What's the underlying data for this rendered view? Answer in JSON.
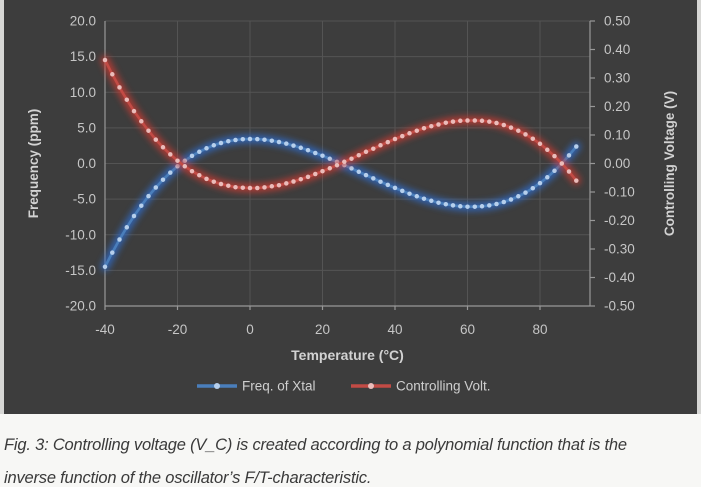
{
  "chart": {
    "x_axis": {
      "title": "Temperature (°C)",
      "tick_labels": [
        "-40",
        "-20",
        "0",
        "20",
        "40",
        "60",
        "80"
      ],
      "tick_values": [
        -40,
        -20,
        0,
        20,
        40,
        60,
        80
      ]
    },
    "left_axis": {
      "title": "Frequency (ppm)",
      "tick_labels": [
        "20.0",
        "15.0",
        "10.0",
        "5.0",
        "0.0",
        "-5.0",
        "-10.0",
        "-15.0",
        "-20.0"
      ],
      "tick_values": [
        20,
        15,
        10,
        5,
        0,
        -5,
        -10,
        -15,
        -20
      ],
      "range": [
        -20,
        20
      ]
    },
    "right_axis": {
      "title": "Controlling Voltage (V)",
      "tick_labels": [
        "0.50",
        "0.40",
        "0.30",
        "0.20",
        "0.10",
        "0.00",
        "-0.10",
        "-0.20",
        "-0.30",
        "-0.40",
        "-0.50"
      ],
      "tick_values": [
        0.5,
        0.4,
        0.3,
        0.2,
        0.1,
        0.0,
        -0.1,
        -0.2,
        -0.3,
        -0.4,
        -0.5
      ],
      "range": [
        -0.5,
        0.5
      ]
    },
    "colors": {
      "panel_bg": "#3d3d3d",
      "gridline": "#545454",
      "axis_line": "#989898",
      "tick_text": "#c6c6c6",
      "legend_text": "#cfcfcf"
    }
  },
  "chart_data": {
    "type": "line",
    "title": "",
    "xlabel": "Temperature (°C)",
    "ylabel_left": "Frequency (ppm)",
    "ylabel_right": "Controlling Voltage (V)",
    "xlim": [
      -40,
      93.8
    ],
    "ylim_left": [
      -20,
      20
    ],
    "ylim_right": [
      -0.5,
      0.5
    ],
    "grid": true,
    "legend_position": "bottom",
    "x": [
      -40,
      -38,
      -36,
      -34,
      -32,
      -30,
      -28,
      -26,
      -24,
      -22,
      -20,
      -18,
      -16,
      -14,
      -12,
      -10,
      -8,
      -6,
      -4,
      -2,
      0,
      2,
      4,
      6,
      8,
      10,
      12,
      14,
      16,
      18,
      20,
      22,
      24,
      26,
      28,
      30,
      32,
      34,
      36,
      38,
      40,
      42,
      44,
      46,
      48,
      50,
      52,
      54,
      56,
      58,
      60,
      62,
      64,
      66,
      68,
      70,
      72,
      74,
      76,
      78,
      80,
      82,
      84,
      86,
      88,
      90
    ],
    "series": [
      {
        "name": "Freq. of Xtal",
        "axis": "left",
        "units": "ppm",
        "color": "#4a7ebb",
        "glow": "#2e6fd6",
        "marker": "#b6cfec",
        "values": [
          -14.5,
          -12.51,
          -10.67,
          -8.95,
          -7.37,
          -5.92,
          -4.58,
          -3.37,
          -2.27,
          -1.28,
          -0.4,
          0.38,
          1.06,
          1.64,
          2.14,
          2.55,
          2.88,
          3.13,
          3.3,
          3.41,
          3.44,
          3.42,
          3.34,
          3.2,
          3.02,
          2.79,
          2.51,
          2.2,
          1.86,
          1.48,
          1.09,
          0.66,
          0.22,
          -0.23,
          -0.69,
          -1.16,
          -1.63,
          -2.09,
          -2.55,
          -3.0,
          -3.43,
          -3.85,
          -4.24,
          -4.6,
          -4.94,
          -5.24,
          -5.5,
          -5.71,
          -5.88,
          -6.0,
          -6.06,
          -6.06,
          -6.0,
          -5.88,
          -5.68,
          -5.4,
          -5.05,
          -4.61,
          -4.08,
          -3.47,
          -2.75,
          -1.94,
          -1.02,
          0.0,
          1.14,
          2.39
        ]
      },
      {
        "name": "Controlling Volt.",
        "axis": "right",
        "units": "V",
        "color": "#c24b45",
        "glow": "#d43a30",
        "marker": "#eabcba",
        "values": [
          0.363,
          0.313,
          0.267,
          0.224,
          0.184,
          0.148,
          0.115,
          0.084,
          0.057,
          0.032,
          0.01,
          -0.01,
          -0.027,
          -0.041,
          -0.054,
          -0.064,
          -0.072,
          -0.078,
          -0.083,
          -0.085,
          -0.086,
          -0.086,
          -0.084,
          -0.08,
          -0.076,
          -0.07,
          -0.063,
          -0.055,
          -0.047,
          -0.037,
          -0.027,
          -0.017,
          -0.006,
          0.006,
          0.017,
          0.029,
          0.041,
          0.052,
          0.064,
          0.075,
          0.086,
          0.096,
          0.106,
          0.115,
          0.124,
          0.131,
          0.137,
          0.143,
          0.147,
          0.15,
          0.151,
          0.151,
          0.15,
          0.147,
          0.142,
          0.135,
          0.126,
          0.115,
          0.102,
          0.087,
          0.069,
          0.048,
          0.026,
          0.0,
          -0.028,
          -0.06
        ]
      }
    ]
  },
  "legend": [
    {
      "label": "Freq. of Xtal"
    },
    {
      "label": "Controlling Volt."
    }
  ],
  "caption": {
    "line1": "Fig. 3: Controlling voltage (V_C) is created according to a polynomial function that is the",
    "line2": "inverse function of the oscillator’s F/T-characteristic."
  }
}
